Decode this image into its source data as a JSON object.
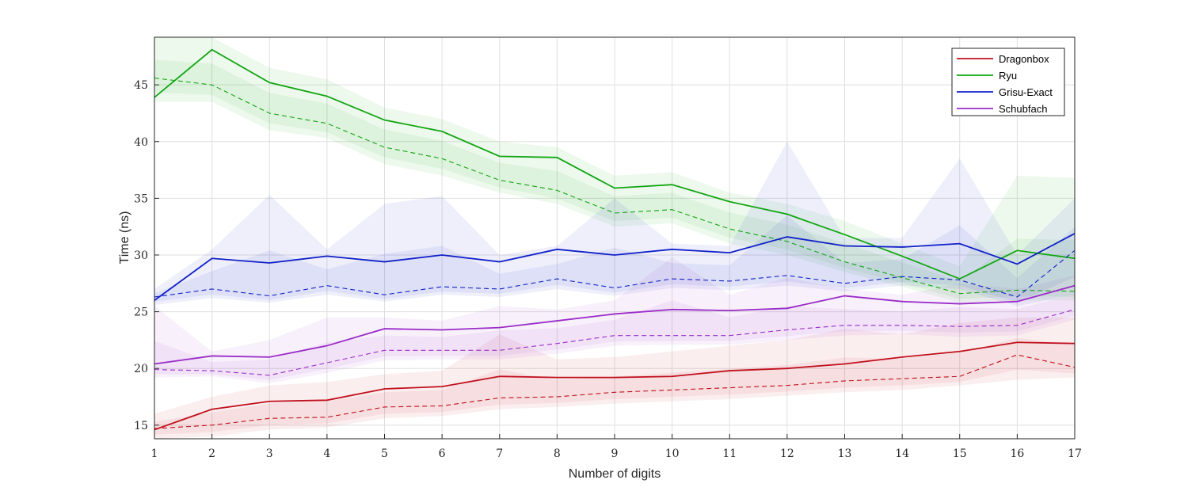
{
  "chart_data": {
    "type": "line",
    "xlabel": "Number of digits",
    "ylabel": "Time (ns)",
    "xlim": [
      1,
      17
    ],
    "ylim": [
      13.8,
      49.2
    ],
    "x_ticks": [
      1,
      2,
      3,
      4,
      5,
      6,
      7,
      8,
      9,
      10,
      11,
      12,
      13,
      14,
      15,
      16,
      17
    ],
    "y_ticks": [
      15,
      20,
      25,
      30,
      35,
      40,
      45
    ],
    "grid": true,
    "legend_position": "top-right",
    "x": [
      1,
      2,
      3,
      4,
      5,
      6,
      7,
      8,
      9,
      10,
      11,
      12,
      13,
      14,
      15,
      16,
      17
    ],
    "series": [
      {
        "name": "Dragonbox",
        "color": "#c0101c",
        "values": [
          14.6,
          16.4,
          17.1,
          17.2,
          18.2,
          18.4,
          19.3,
          19.2,
          19.2,
          19.3,
          19.8,
          20.0,
          20.4,
          21.0,
          21.5,
          22.3,
          22.2
        ],
        "median": [
          14.7,
          15.0,
          15.6,
          15.7,
          16.6,
          16.7,
          17.4,
          17.5,
          17.9,
          18.1,
          18.3,
          18.5,
          18.9,
          19.1,
          19.3,
          21.2,
          20.1
        ],
        "band_low": [
          13.8,
          14.0,
          14.6,
          14.8,
          15.6,
          15.8,
          16.4,
          16.6,
          16.9,
          17.1,
          17.3,
          17.6,
          17.9,
          18.1,
          18.5,
          19.0,
          19.2
        ],
        "band_high": [
          16.0,
          17.5,
          18.5,
          18.8,
          19.5,
          19.8,
          23.0,
          20.8,
          21.0,
          21.5,
          22.0,
          22.5,
          23.5,
          23.0,
          24.0,
          24.5,
          24.5
        ]
      },
      {
        "name": "Ryu",
        "color": "#12a612",
        "values": [
          43.9,
          48.1,
          45.2,
          44.0,
          41.9,
          40.9,
          38.7,
          38.6,
          35.9,
          36.2,
          34.7,
          33.6,
          31.8,
          29.9,
          27.9,
          30.4,
          29.7
        ],
        "median": [
          45.6,
          45.0,
          42.5,
          41.6,
          39.5,
          38.5,
          36.6,
          35.7,
          33.7,
          34.0,
          32.3,
          31.2,
          29.4,
          28.0,
          26.6,
          26.9,
          26.8
        ],
        "band_low": [
          43.5,
          43.5,
          41.0,
          40.3,
          38.0,
          37.0,
          35.5,
          34.5,
          32.5,
          32.8,
          31.0,
          30.0,
          28.5,
          27.2,
          25.8,
          26.0,
          26.0
        ],
        "band_high": [
          49.2,
          49.2,
          46.5,
          45.5,
          43.0,
          42.0,
          40.0,
          39.5,
          37.0,
          37.3,
          35.5,
          34.5,
          33.0,
          31.0,
          29.0,
          37.0,
          36.8
        ]
      },
      {
        "name": "Grisu-Exact",
        "color": "#1020c8",
        "values": [
          26.0,
          29.7,
          29.3,
          29.9,
          29.4,
          30.0,
          29.4,
          30.5,
          30.0,
          30.5,
          30.2,
          31.6,
          30.8,
          30.7,
          31.0,
          29.2,
          31.9
        ],
        "median": [
          26.3,
          27.0,
          26.4,
          27.3,
          26.5,
          27.2,
          27.0,
          27.9,
          27.1,
          27.9,
          27.7,
          28.2,
          27.5,
          28.1,
          27.8,
          26.3,
          30.4
        ],
        "band_low": [
          25.6,
          26.2,
          25.8,
          26.5,
          25.9,
          26.5,
          26.3,
          27.0,
          26.4,
          27.1,
          26.9,
          27.3,
          26.8,
          27.3,
          27.0,
          25.5,
          26.5
        ],
        "band_high": [
          27.0,
          30.5,
          35.3,
          30.5,
          34.5,
          35.2,
          30.0,
          30.8,
          35.0,
          31.0,
          30.8,
          40.0,
          31.5,
          31.5,
          38.5,
          30.0,
          35.0
        ]
      },
      {
        "name": "Schubfach",
        "color": "#9a2cc8",
        "values": [
          20.4,
          21.1,
          21.0,
          22.0,
          23.5,
          23.4,
          23.6,
          24.2,
          24.8,
          25.2,
          25.1,
          25.3,
          26.4,
          25.9,
          25.7,
          25.9,
          27.3
        ],
        "median": [
          19.9,
          19.8,
          19.4,
          20.5,
          21.6,
          21.6,
          21.6,
          22.2,
          22.9,
          22.9,
          22.9,
          23.4,
          23.8,
          23.8,
          23.7,
          23.8,
          25.2
        ],
        "band_low": [
          19.2,
          19.3,
          18.7,
          19.6,
          20.7,
          20.8,
          20.8,
          21.3,
          22.0,
          22.1,
          22.1,
          22.5,
          22.9,
          23.0,
          22.8,
          22.9,
          24.3
        ],
        "band_high": [
          25.5,
          21.5,
          22.5,
          24.5,
          24.5,
          24.2,
          25.5,
          25.2,
          26.0,
          29.8,
          26.5,
          28.0,
          27.0,
          26.5,
          27.5,
          27.0,
          28.2
        ]
      }
    ]
  }
}
